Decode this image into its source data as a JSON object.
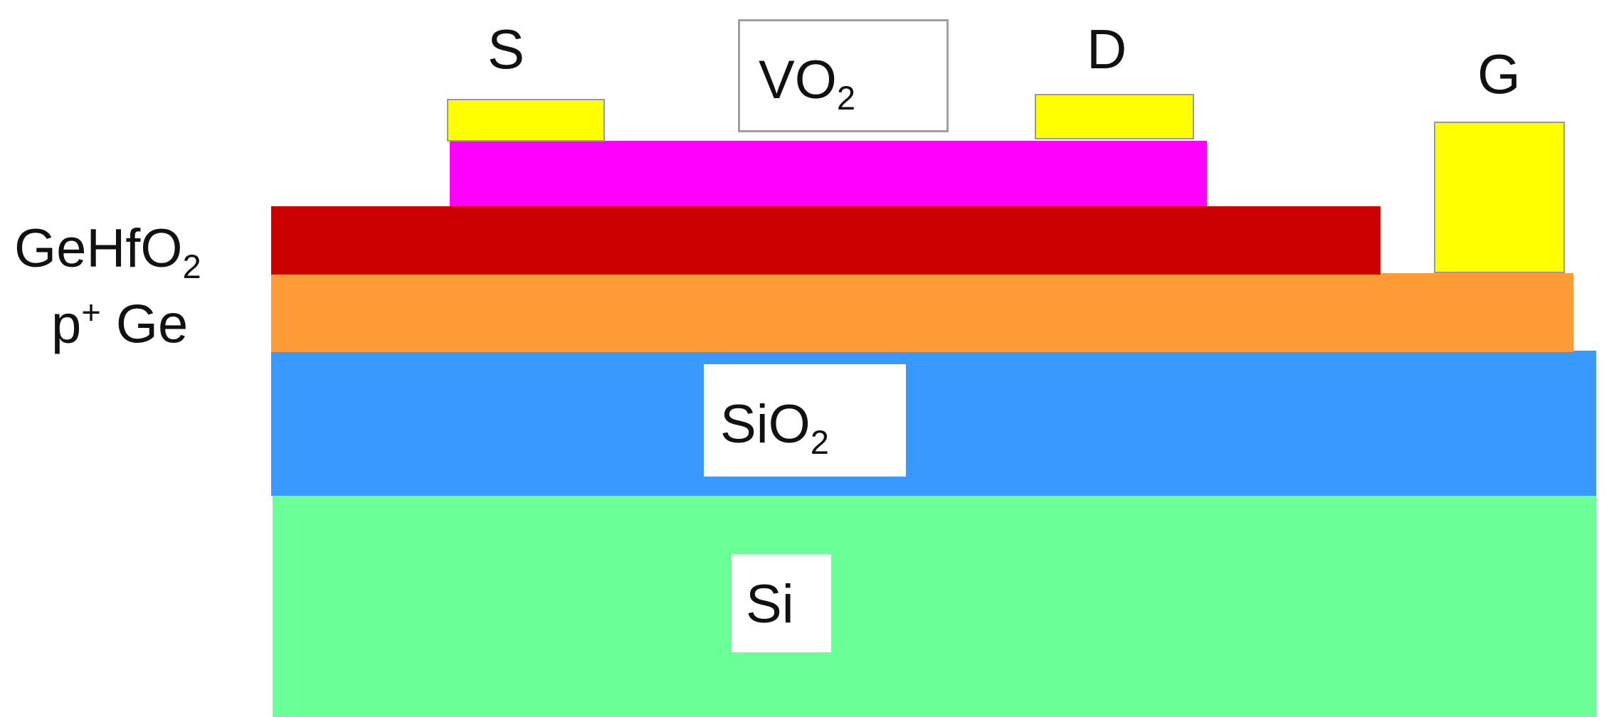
{
  "layers": {
    "si": {
      "label": "Si",
      "color": "#6aff97"
    },
    "sio2": {
      "label_main": "SiO",
      "label_sub": "2",
      "color": "#3a99ff"
    },
    "pge": {
      "label_main": "p",
      "label_sup": "+",
      "label_rest": " Ge",
      "color": "#ff9c37"
    },
    "gehfo2": {
      "label_main": "GeHfO",
      "label_sub": "2",
      "color": "#cc0000"
    },
    "vo2": {
      "label_main": "VO",
      "label_sub": "2",
      "color": "#ff00ff"
    }
  },
  "contacts": {
    "source": {
      "label": "S",
      "color": "#ffff00"
    },
    "drain": {
      "label": "D",
      "color": "#ffff00"
    },
    "gate": {
      "label": "G",
      "color": "#ffff00"
    }
  }
}
